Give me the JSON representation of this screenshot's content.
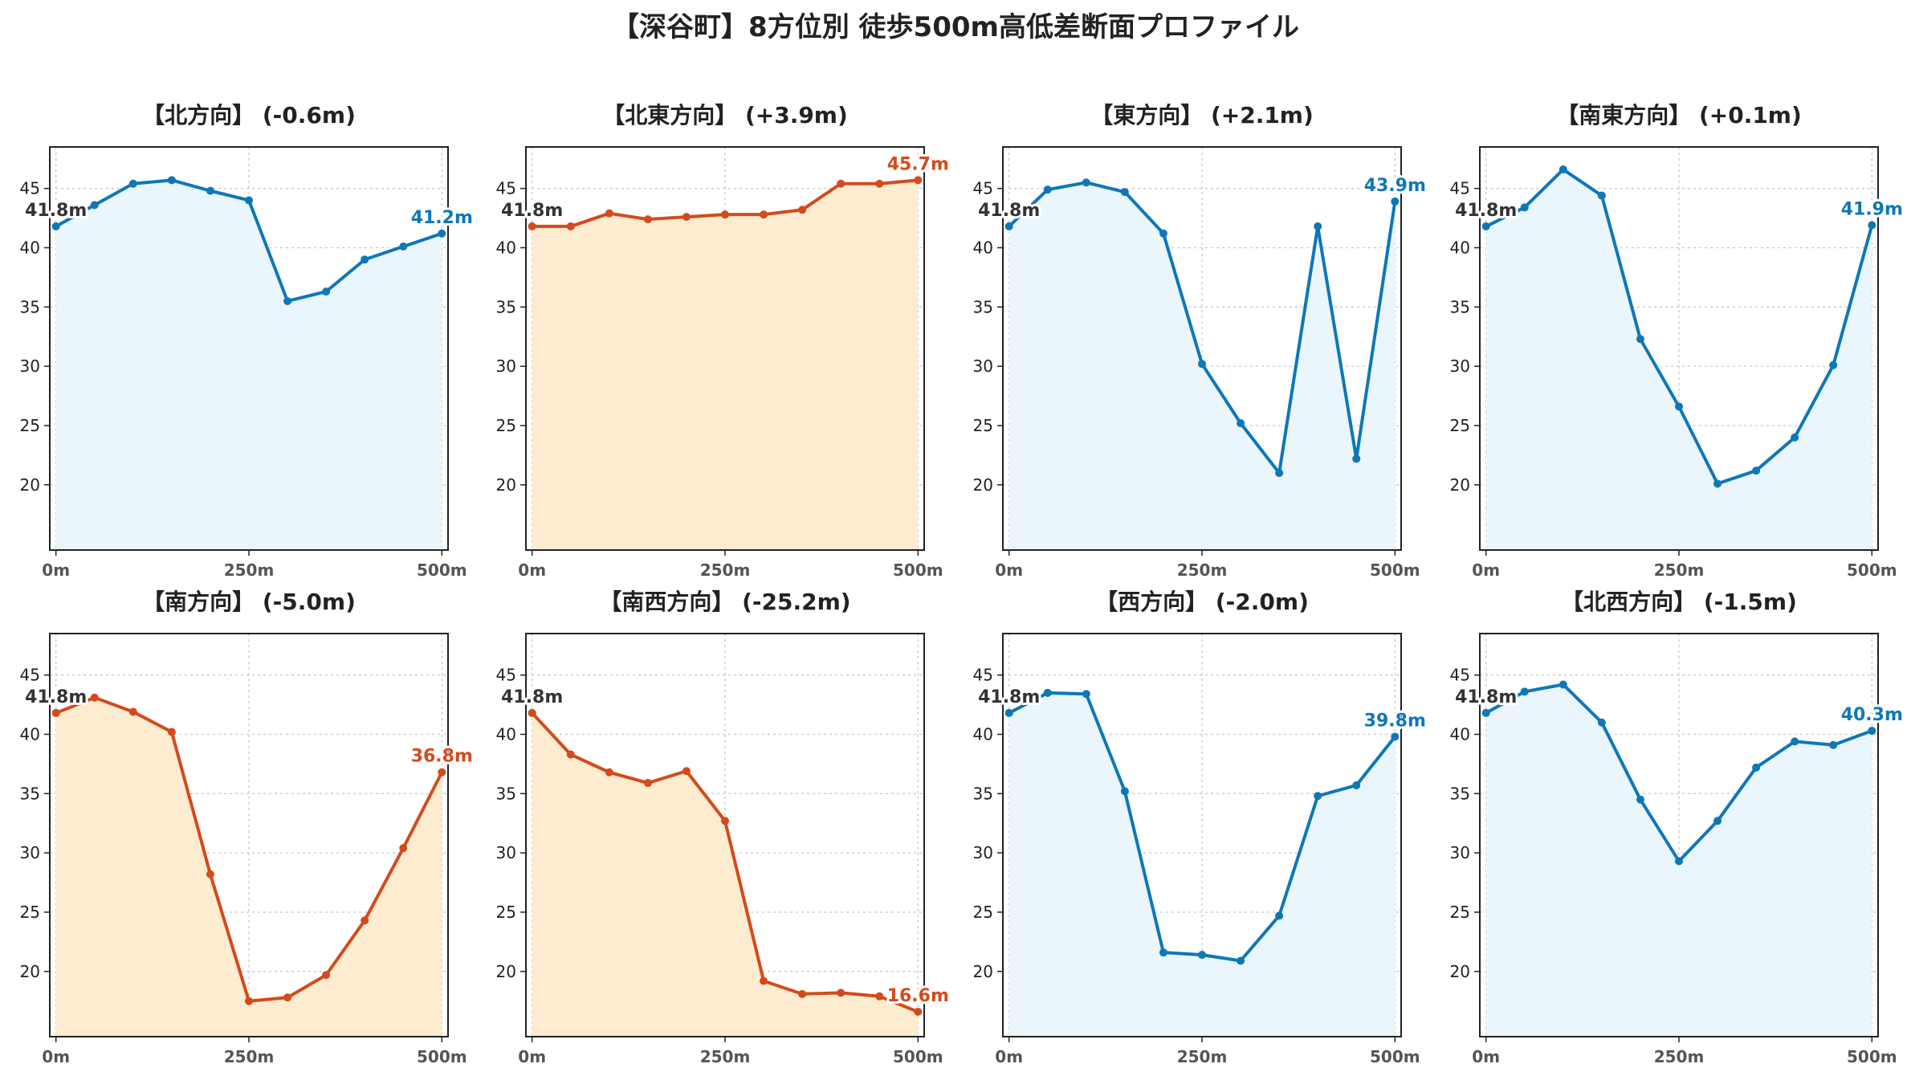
{
  "figure": {
    "title": "【深谷町】8方位別 徒歩500m高低差断面プロファイル"
  },
  "style": {
    "rise_line": "#d44a1c",
    "rise_fill": "#fdeccf",
    "fall_line": "#0e77b8",
    "fall_fill": "#eaf6fc",
    "start_label_color": "#333333",
    "grid_color": "#c8c8c8"
  },
  "chart_data": [
    {
      "type": "area",
      "title": "【北方向】 (-0.6m)",
      "trend": "fall",
      "x": [
        0,
        50,
        100,
        150,
        200,
        250,
        300,
        350,
        400,
        450,
        500
      ],
      "y": [
        41.8,
        43.6,
        45.4,
        45.7,
        44.8,
        44.0,
        35.5,
        36.3,
        39.0,
        40.1,
        41.2
      ],
      "xticks": [
        "0m",
        "250m",
        "500m"
      ],
      "xtick_values": [
        0,
        250,
        500
      ],
      "yticks": [
        20,
        25,
        30,
        35,
        40,
        45
      ],
      "ylim": [
        14.5,
        48.5
      ],
      "xlim": [
        -8,
        508
      ],
      "start_label": "41.8m",
      "end_label": "41.2m",
      "grid": true
    },
    {
      "type": "area",
      "title": "【北東方向】 (+3.9m)",
      "trend": "rise",
      "x": [
        0,
        50,
        100,
        150,
        200,
        250,
        300,
        350,
        400,
        450,
        500
      ],
      "y": [
        41.8,
        41.8,
        42.9,
        42.4,
        42.6,
        42.8,
        42.8,
        43.2,
        45.4,
        45.4,
        45.7
      ],
      "xticks": [
        "0m",
        "250m",
        "500m"
      ],
      "xtick_values": [
        0,
        250,
        500
      ],
      "yticks": [
        20,
        25,
        30,
        35,
        40,
        45
      ],
      "ylim": [
        14.5,
        48.5
      ],
      "xlim": [
        -8,
        508
      ],
      "start_label": "41.8m",
      "end_label": "45.7m",
      "grid": true
    },
    {
      "type": "area",
      "title": "【東方向】 (+2.1m)",
      "trend": "fall",
      "x": [
        0,
        50,
        100,
        150,
        200,
        250,
        300,
        350,
        400,
        450,
        500
      ],
      "y": [
        41.8,
        44.9,
        45.5,
        44.7,
        41.2,
        30.2,
        25.2,
        21.0,
        41.8,
        22.2,
        43.9
      ],
      "xticks": [
        "0m",
        "250m",
        "500m"
      ],
      "xtick_values": [
        0,
        250,
        500
      ],
      "yticks": [
        20,
        25,
        30,
        35,
        40,
        45
      ],
      "ylim": [
        14.5,
        48.5
      ],
      "xlim": [
        -8,
        508
      ],
      "start_label": "41.8m",
      "end_label": "43.9m",
      "grid": true
    },
    {
      "type": "area",
      "title": "【南東方向】 (+0.1m)",
      "trend": "fall",
      "x": [
        0,
        50,
        100,
        150,
        200,
        250,
        300,
        350,
        400,
        450,
        500
      ],
      "y": [
        41.8,
        43.4,
        46.6,
        44.4,
        32.3,
        26.6,
        20.1,
        21.2,
        24.0,
        30.1,
        41.9
      ],
      "xticks": [
        "0m",
        "250m",
        "500m"
      ],
      "xtick_values": [
        0,
        250,
        500
      ],
      "yticks": [
        20,
        25,
        30,
        35,
        40,
        45
      ],
      "ylim": [
        14.5,
        48.5
      ],
      "xlim": [
        -8,
        508
      ],
      "start_label": "41.8m",
      "end_label": "41.9m",
      "grid": true
    },
    {
      "type": "area",
      "title": "【南方向】 (-5.0m)",
      "trend": "rise",
      "x": [
        0,
        50,
        100,
        150,
        200,
        250,
        300,
        350,
        400,
        450,
        500
      ],
      "y": [
        41.8,
        43.1,
        41.9,
        40.2,
        28.2,
        17.5,
        17.8,
        19.7,
        24.3,
        30.4,
        36.8
      ],
      "xticks": [
        "0m",
        "250m",
        "500m"
      ],
      "xtick_values": [
        0,
        250,
        500
      ],
      "yticks": [
        20,
        25,
        30,
        35,
        40,
        45
      ],
      "ylim": [
        14.5,
        48.5
      ],
      "xlim": [
        -8,
        508
      ],
      "start_label": "41.8m",
      "end_label": "36.8m",
      "grid": true
    },
    {
      "type": "area",
      "title": "【南西方向】 (-25.2m)",
      "trend": "rise",
      "x": [
        0,
        50,
        100,
        150,
        200,
        250,
        300,
        350,
        400,
        450,
        500
      ],
      "y": [
        41.8,
        38.3,
        36.8,
        35.9,
        36.9,
        32.7,
        19.2,
        18.1,
        18.2,
        17.9,
        16.6
      ],
      "xticks": [
        "0m",
        "250m",
        "500m"
      ],
      "xtick_values": [
        0,
        250,
        500
      ],
      "yticks": [
        20,
        25,
        30,
        35,
        40,
        45
      ],
      "ylim": [
        14.5,
        48.5
      ],
      "xlim": [
        -8,
        508
      ],
      "start_label": "41.8m",
      "end_label": "16.6m",
      "grid": true
    },
    {
      "type": "area",
      "title": "【西方向】 (-2.0m)",
      "trend": "fall",
      "x": [
        0,
        50,
        100,
        150,
        200,
        250,
        300,
        350,
        400,
        450,
        500
      ],
      "y": [
        41.8,
        43.5,
        43.4,
        35.2,
        21.6,
        21.4,
        20.9,
        24.7,
        34.8,
        35.7,
        39.8
      ],
      "xticks": [
        "0m",
        "250m",
        "500m"
      ],
      "xtick_values": [
        0,
        250,
        500
      ],
      "yticks": [
        20,
        25,
        30,
        35,
        40,
        45
      ],
      "ylim": [
        14.5,
        48.5
      ],
      "xlim": [
        -8,
        508
      ],
      "start_label": "41.8m",
      "end_label": "39.8m",
      "grid": true
    },
    {
      "type": "area",
      "title": "【北西方向】 (-1.5m)",
      "trend": "fall",
      "x": [
        0,
        50,
        100,
        150,
        200,
        250,
        300,
        350,
        400,
        450,
        500
      ],
      "y": [
        41.8,
        43.6,
        44.2,
        41.0,
        34.5,
        29.3,
        32.7,
        37.2,
        39.4,
        39.1,
        40.3
      ],
      "xticks": [
        "0m",
        "250m",
        "500m"
      ],
      "xtick_values": [
        0,
        250,
        500
      ],
      "yticks": [
        20,
        25,
        30,
        35,
        40,
        45
      ],
      "ylim": [
        14.5,
        48.5
      ],
      "xlim": [
        -8,
        508
      ],
      "start_label": "41.8m",
      "end_label": "40.3m",
      "grid": true
    }
  ]
}
